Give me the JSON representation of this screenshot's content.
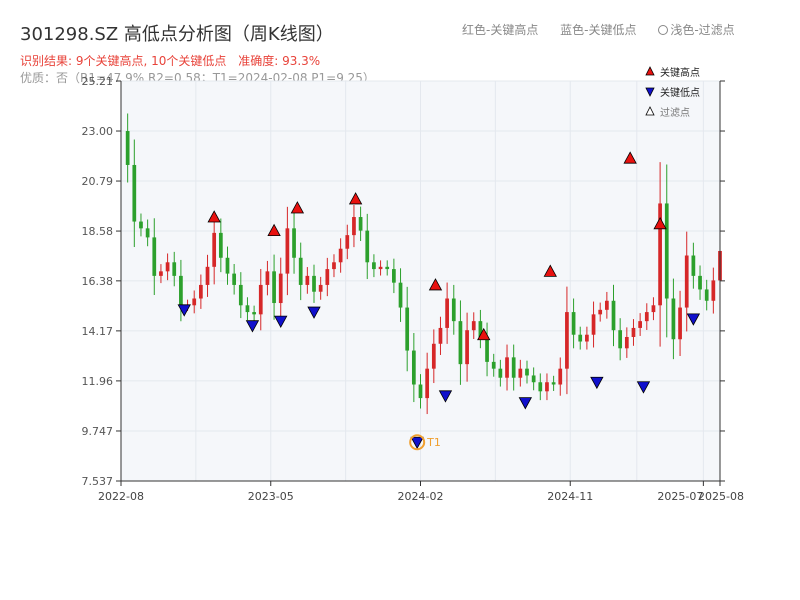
{
  "title": "301298.SZ 高低点分析图（周K线图）",
  "subtitle_result": "识别结果: 9个关键高点, 10个关键低点",
  "subtitle_accuracy": "准确度: 93.3%",
  "subtitle_quality": "优质：否（R1=47.9%  R2=0.58；T1=2024-02-08 P1=9.25）",
  "top_legend": {
    "high": "红色-关键高点",
    "low": "蓝色-关键低点",
    "filtered": "浅色-过滤点"
  },
  "colors": {
    "up": "#d62728",
    "down": "#2ca02c",
    "high_marker": "#e8110f",
    "low_marker": "#1010cc",
    "t1": "#f0a030",
    "plot_bg": "#f5f7fa"
  },
  "chart_data": {
    "type": "candlestick",
    "title": "301298.SZ 高低点分析图（周K线图）",
    "xlabel": "",
    "ylabel": "",
    "ylim": [
      7.537,
      25.21
    ],
    "yticks": [
      7.537,
      9.747,
      11.96,
      14.17,
      16.38,
      18.58,
      20.79,
      23.0,
      25.21
    ],
    "ytick_labels": [
      "7.537",
      "9.747",
      "11.96",
      "14.17",
      "16.38",
      "18.58",
      "20.79",
      "23.00",
      "25.21"
    ],
    "xticks": [
      {
        "label": "2022-08",
        "x": 0
      },
      {
        "label": "2023-05",
        "x": 9
      },
      {
        "label": "2024-02",
        "x": 18
      },
      {
        "label": "2024-11",
        "x": 27
      },
      {
        "label": "2025-07",
        "x": 35
      },
      {
        "label": "2025-08",
        "x": 36
      }
    ],
    "xlim": [
      0,
      36
    ],
    "closes": [
      [
        0.0,
        23.0
      ],
      [
        0.4,
        21.5
      ],
      [
        0.8,
        19.0
      ],
      [
        1.2,
        18.7
      ],
      [
        1.6,
        18.3
      ],
      [
        2.0,
        16.6
      ],
      [
        2.4,
        16.8
      ],
      [
        2.8,
        17.2
      ],
      [
        3.2,
        16.6
      ],
      [
        3.6,
        15.3
      ],
      [
        4.0,
        15.3
      ],
      [
        4.4,
        15.6
      ],
      [
        4.8,
        16.2
      ],
      [
        5.2,
        17.0
      ],
      [
        5.6,
        18.5
      ],
      [
        6.0,
        17.4
      ],
      [
        6.4,
        16.7
      ],
      [
        6.8,
        16.2
      ],
      [
        7.2,
        15.3
      ],
      [
        7.6,
        15.0
      ],
      [
        8.0,
        14.9
      ],
      [
        8.4,
        16.2
      ],
      [
        8.8,
        16.8
      ],
      [
        9.2,
        15.4
      ],
      [
        9.6,
        16.7
      ],
      [
        10.0,
        18.7
      ],
      [
        10.4,
        17.4
      ],
      [
        10.8,
        16.2
      ],
      [
        11.2,
        16.6
      ],
      [
        11.6,
        15.9
      ],
      [
        12.0,
        16.2
      ],
      [
        12.4,
        16.9
      ],
      [
        12.8,
        17.2
      ],
      [
        13.2,
        17.8
      ],
      [
        13.6,
        18.4
      ],
      [
        14.0,
        19.2
      ],
      [
        14.4,
        18.6
      ],
      [
        14.8,
        17.2
      ],
      [
        15.2,
        16.9
      ],
      [
        15.6,
        17.0
      ],
      [
        16.0,
        16.9
      ],
      [
        16.4,
        16.3
      ],
      [
        16.8,
        15.2
      ],
      [
        17.2,
        13.3
      ],
      [
        17.6,
        11.8
      ],
      [
        18.0,
        11.2
      ],
      [
        18.4,
        12.5
      ],
      [
        18.8,
        13.6
      ],
      [
        19.2,
        14.3
      ],
      [
        19.6,
        15.6
      ],
      [
        20.0,
        14.6
      ],
      [
        20.4,
        12.7
      ],
      [
        20.8,
        14.2
      ],
      [
        21.2,
        14.6
      ],
      [
        21.6,
        13.9
      ],
      [
        22.0,
        12.8
      ],
      [
        22.4,
        12.5
      ],
      [
        22.8,
        12.1
      ],
      [
        23.2,
        13.0
      ],
      [
        23.6,
        12.1
      ],
      [
        24.0,
        12.5
      ],
      [
        24.4,
        12.2
      ],
      [
        24.8,
        11.9
      ],
      [
        25.2,
        11.5
      ],
      [
        25.6,
        11.9
      ],
      [
        26.0,
        11.8
      ],
      [
        26.4,
        12.5
      ],
      [
        26.8,
        15.0
      ],
      [
        27.2,
        14.0
      ],
      [
        27.6,
        13.7
      ],
      [
        28.0,
        14.0
      ],
      [
        28.4,
        14.9
      ],
      [
        28.8,
        15.1
      ],
      [
        29.2,
        15.5
      ],
      [
        29.6,
        14.2
      ],
      [
        30.0,
        13.4
      ],
      [
        30.4,
        13.9
      ],
      [
        30.8,
        14.3
      ],
      [
        31.2,
        14.6
      ],
      [
        31.6,
        15.0
      ],
      [
        32.0,
        15.3
      ],
      [
        32.4,
        19.8
      ],
      [
        32.8,
        15.6
      ],
      [
        33.2,
        13.8
      ],
      [
        33.6,
        15.2
      ],
      [
        34.0,
        17.5
      ],
      [
        34.4,
        16.6
      ],
      [
        34.8,
        16.0
      ],
      [
        35.2,
        15.5
      ],
      [
        35.6,
        16.4
      ],
      [
        36.0,
        17.7
      ]
    ],
    "key_highs": [
      {
        "x": 5.6,
        "y": 19.2
      },
      {
        "x": 9.2,
        "y": 18.6
      },
      {
        "x": 10.6,
        "y": 19.6
      },
      {
        "x": 14.1,
        "y": 20.0
      },
      {
        "x": 18.9,
        "y": 16.2
      },
      {
        "x": 21.8,
        "y": 14.0
      },
      {
        "x": 25.8,
        "y": 16.8
      },
      {
        "x": 30.6,
        "y": 21.8
      },
      {
        "x": 32.4,
        "y": 18.9
      }
    ],
    "key_lows": [
      {
        "x": 3.8,
        "y": 15.1
      },
      {
        "x": 7.9,
        "y": 14.4
      },
      {
        "x": 9.6,
        "y": 14.6
      },
      {
        "x": 11.6,
        "y": 15.0
      },
      {
        "x": 17.8,
        "y": 9.25
      },
      {
        "x": 19.5,
        "y": 11.3
      },
      {
        "x": 24.3,
        "y": 11.0
      },
      {
        "x": 28.6,
        "y": 11.9
      },
      {
        "x": 31.4,
        "y": 11.7
      },
      {
        "x": 34.4,
        "y": 14.7
      }
    ],
    "t1": {
      "label": "T1",
      "x": 17.8,
      "y": 9.25
    },
    "legend": {
      "position": "top-right",
      "entries": [
        "关键高点",
        "关键低点",
        "过滤点"
      ]
    },
    "grid": true
  }
}
